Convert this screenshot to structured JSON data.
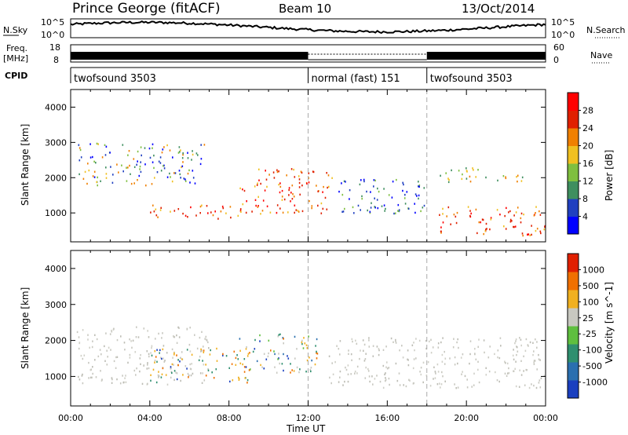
{
  "header": {
    "station": "Prince George (fitACF)",
    "beam": "Beam 10",
    "date": "13/Oct/2014"
  },
  "strips": {
    "nsky_label": "N.Sky",
    "nsky_ticks": [
      "10^5",
      "10^0"
    ],
    "nsearch_label": "N.Search",
    "nsearch_ticks": [
      "10^5",
      "10^0"
    ],
    "freq_label_line1": "Freq.",
    "freq_label_line2": "[MHz]",
    "freq_ticks": [
      "18",
      "8"
    ],
    "nave_label": "Nave",
    "nave_ticks": [
      "60",
      "0"
    ],
    "cpid_label": "CPID",
    "cpid_segments": [
      {
        "label": "twofsound 3503",
        "start_hour": 0,
        "end_hour": 12
      },
      {
        "label": "normal (fast) 151",
        "start_hour": 12,
        "end_hour": 18
      },
      {
        "label": "twofsound 3503",
        "start_hour": 18,
        "end_hour": 24
      }
    ]
  },
  "chart_data": [
    {
      "type": "heatmap",
      "quantity": "Power",
      "ylabel": "Slant Range [km]",
      "yticks": [
        1000,
        2000,
        3000,
        4000
      ],
      "ylim": [
        180,
        4500
      ],
      "colorbar": {
        "label": "Power [dB]",
        "ticks": [
          "4",
          "8",
          "12",
          "16",
          "20",
          "24",
          "28"
        ],
        "colors": [
          "#0000ff",
          "#2040c0",
          "#3f8f5f",
          "#7fbf3f",
          "#f0c020",
          "#f08000",
          "#e02000",
          "#ff0000"
        ]
      },
      "echo_regions": [
        {
          "t0": 0.3,
          "t1": 6.8,
          "r0": 1800,
          "r1": 3000,
          "level": "mixed low"
        },
        {
          "t0": 4.0,
          "t1": 8.8,
          "r0": 850,
          "r1": 1250,
          "level": "high"
        },
        {
          "t0": 8.5,
          "t1": 13.2,
          "r0": 1000,
          "r1": 2300,
          "level": "high"
        },
        {
          "t0": 13.5,
          "t1": 18.0,
          "r0": 1000,
          "r1": 2000,
          "level": "low"
        },
        {
          "t0": 18.6,
          "t1": 24.0,
          "r0": 350,
          "r1": 1200,
          "level": "high"
        },
        {
          "t0": 18.6,
          "t1": 23.0,
          "r0": 1900,
          "r1": 2300,
          "level": "mid"
        }
      ]
    },
    {
      "type": "heatmap",
      "quantity": "Velocity",
      "ylabel": "Slant Range [km]",
      "yticks": [
        1000,
        2000,
        3000,
        4000
      ],
      "ylim": [
        180,
        4500
      ],
      "colorbar": {
        "label": "Velocity [m s^-1]",
        "ticks": [
          "1000",
          "500",
          "100",
          "25",
          "-25",
          "-100",
          "-500",
          "-1000"
        ],
        "colors": [
          "#1a3fbf",
          "#2a6faf",
          "#2f8f6f",
          "#5fbf3f",
          "#c8c8c0",
          "#f0b020",
          "#f07000",
          "#e02000"
        ]
      },
      "xlabel": "Time UT",
      "xticks": [
        "00:00",
        "04:00",
        "08:00",
        "12:00",
        "16:00",
        "20:00",
        "00:00"
      ],
      "echo_regions": [
        {
          "t0": 0.3,
          "t1": 7.0,
          "r0": 800,
          "r1": 2400,
          "level": "ground"
        },
        {
          "t0": 4.0,
          "t1": 9.0,
          "r0": 850,
          "r1": 1800,
          "level": "negative"
        },
        {
          "t0": 8.5,
          "t1": 12.5,
          "r0": 1100,
          "r1": 2200,
          "level": "mixed"
        },
        {
          "t0": 13.0,
          "t1": 24.0,
          "r0": 700,
          "r1": 2100,
          "level": "ground"
        }
      ]
    }
  ]
}
